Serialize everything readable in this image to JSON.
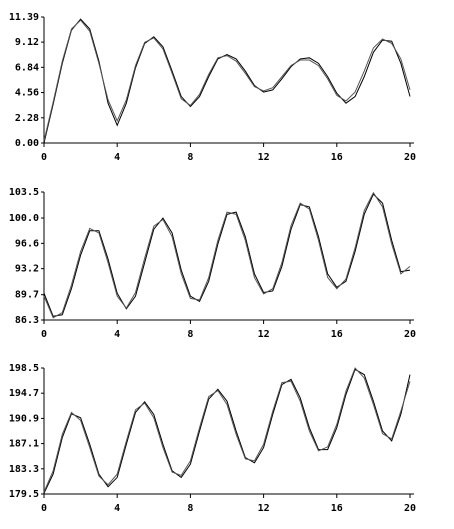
{
  "chart_data": [
    {
      "type": "line",
      "x": [
        0,
        0.5,
        1,
        1.5,
        2,
        2.5,
        3,
        3.5,
        4,
        4.5,
        5,
        5.5,
        6,
        6.5,
        7,
        7.5,
        8,
        8.5,
        9,
        9.5,
        10,
        10.5,
        11,
        11.5,
        12,
        12.5,
        13,
        13.5,
        14,
        14.5,
        15,
        15.5,
        16,
        16.5,
        17,
        17.5,
        18,
        18.5,
        19,
        19.5,
        20
      ],
      "series": [
        {
          "color": "#000000",
          "values": [
            0,
            3.5,
            7.2,
            10.2,
            11.2,
            10.3,
            7.4,
            3.6,
            1.6,
            3.6,
            6.8,
            9.0,
            9.6,
            8.7,
            6.5,
            4.2,
            3.3,
            4.2,
            6.0,
            7.6,
            8.0,
            7.6,
            6.5,
            5.2,
            4.6,
            4.8,
            5.8,
            6.9,
            7.6,
            7.7,
            7.2,
            6.0,
            4.5,
            3.6,
            4.2,
            6.0,
            8.2,
            9.3,
            9.2,
            7.2,
            4.2
          ]
        },
        {
          "color": "#555555",
          "values": [
            0.2,
            3.7,
            7.4,
            10.3,
            11.1,
            10.1,
            7.2,
            3.9,
            2.0,
            3.9,
            7.0,
            9.1,
            9.5,
            8.5,
            6.3,
            4.0,
            3.4,
            4.4,
            6.2,
            7.7,
            7.9,
            7.4,
            6.3,
            5.1,
            4.7,
            5.0,
            6.0,
            7.0,
            7.5,
            7.5,
            7.0,
            5.8,
            4.3,
            3.8,
            4.6,
            6.5,
            8.6,
            9.4,
            9.0,
            7.6,
            4.8
          ]
        }
      ],
      "xlim": [
        0,
        20
      ],
      "xticks": [
        0,
        4,
        8,
        12,
        16,
        20
      ],
      "ylim": [
        0,
        11.39
      ],
      "yticks": [
        {
          "value": 0,
          "label": "0.00"
        },
        2.28,
        4.56,
        6.84,
        9.12,
        11.39
      ]
    },
    {
      "type": "line",
      "x": [
        0,
        0.5,
        1,
        1.5,
        2,
        2.5,
        3,
        3.5,
        4,
        4.5,
        5,
        5.5,
        6,
        6.5,
        7,
        7.5,
        8,
        8.5,
        9,
        9.5,
        10,
        10.5,
        11,
        11.5,
        12,
        12.5,
        13,
        13.5,
        14,
        14.5,
        15,
        15.5,
        16,
        16.5,
        17,
        17.5,
        18,
        18.5,
        19,
        19.5,
        20
      ],
      "series": [
        {
          "color": "#000000",
          "values": [
            89.9,
            86.8,
            87.0,
            90.5,
            95.0,
            98.3,
            98.3,
            94.5,
            89.9,
            87.8,
            89.5,
            94.0,
            98.5,
            100.0,
            98.0,
            93.0,
            89.5,
            88.8,
            91.5,
            96.5,
            100.5,
            100.8,
            97.5,
            92.5,
            90.0,
            90.2,
            93.5,
            98.5,
            101.8,
            101.5,
            97.5,
            92.5,
            90.7,
            91.5,
            95.5,
            100.5,
            103.2,
            102.0,
            97.0,
            92.8,
            93.0
          ]
        },
        {
          "color": "#555555",
          "values": [
            89.5,
            86.6,
            87.3,
            91.0,
            95.5,
            98.6,
            98.0,
            94.0,
            89.5,
            87.9,
            90.0,
            94.6,
            98.9,
            99.8,
            97.5,
            92.5,
            89.2,
            89.0,
            92.0,
            97.0,
            100.8,
            100.5,
            97.0,
            92.0,
            89.8,
            90.5,
            94.0,
            99.0,
            102.0,
            101.2,
            97.0,
            92.0,
            90.5,
            91.8,
            96.0,
            101.0,
            103.4,
            101.5,
            96.5,
            92.5,
            93.5
          ]
        }
      ],
      "xlim": [
        0,
        20
      ],
      "xticks": [
        0,
        4,
        8,
        12,
        16,
        20
      ],
      "ylim": [
        86.3,
        103.5
      ],
      "yticks": [
        86.3,
        89.7,
        93.2,
        96.6,
        {
          "value": 100,
          "label": "100.0"
        },
        103.5
      ]
    },
    {
      "type": "line",
      "x": [
        0,
        0.5,
        1,
        1.5,
        2,
        2.5,
        3,
        3.5,
        4,
        4.5,
        5,
        5.5,
        6,
        6.5,
        7,
        7.5,
        8,
        8.5,
        9,
        9.5,
        10,
        10.5,
        11,
        11.5,
        12,
        12.5,
        13,
        13.5,
        14,
        14.5,
        15,
        15.5,
        16,
        16.5,
        17,
        17.5,
        18,
        18.5,
        19,
        19.5,
        20
      ],
      "series": [
        {
          "color": "#000000",
          "values": [
            179.6,
            182.5,
            188.0,
            191.6,
            191.0,
            187.0,
            182.5,
            180.6,
            182.0,
            187.0,
            191.8,
            193.4,
            191.5,
            187.0,
            183.0,
            182.0,
            184.0,
            189.0,
            193.8,
            195.3,
            193.5,
            189.0,
            185.0,
            184.2,
            186.5,
            191.5,
            196.0,
            196.8,
            194.0,
            189.5,
            186.2,
            186.2,
            189.5,
            194.5,
            198.3,
            197.5,
            193.5,
            189.0,
            187.5,
            191.5,
            197.5
          ]
        },
        {
          "color": "#555555",
          "values": [
            179.8,
            183.0,
            188.5,
            191.8,
            190.6,
            186.5,
            182.2,
            180.9,
            182.5,
            187.5,
            192.2,
            193.2,
            191.0,
            186.5,
            182.8,
            182.3,
            184.5,
            189.5,
            194.2,
            195.1,
            193.0,
            188.5,
            184.8,
            184.5,
            187.0,
            192.0,
            196.3,
            196.5,
            193.5,
            189.0,
            186.0,
            186.6,
            190.0,
            195.0,
            198.5,
            197.0,
            193.0,
            188.6,
            187.8,
            192.0,
            196.5
          ]
        }
      ],
      "xlim": [
        0,
        20
      ],
      "xticks": [
        0,
        4,
        8,
        12,
        16,
        20
      ],
      "ylim": [
        179.5,
        198.5
      ],
      "yticks": [
        179.5,
        183.3,
        187.1,
        190.9,
        194.7,
        198.5
      ]
    }
  ]
}
